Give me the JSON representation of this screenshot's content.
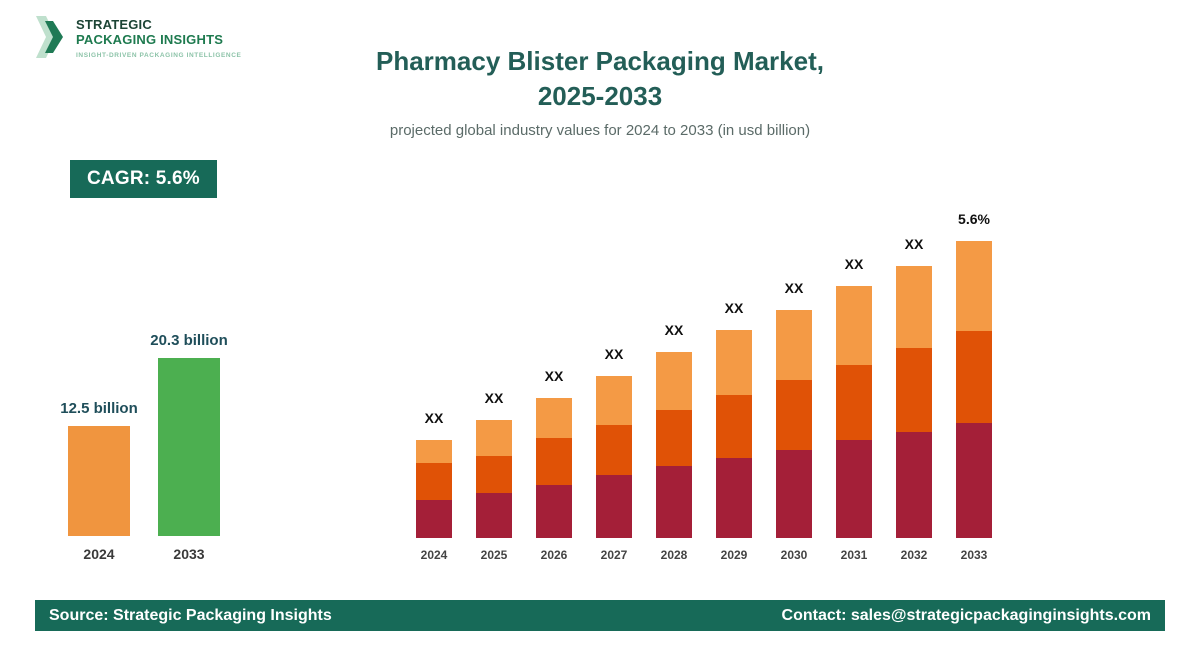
{
  "logo": {
    "line1": "STRATEGIC",
    "line2": "PACKAGING INSIGHTS",
    "tagline": "INSIGHT-DRIVEN PACKAGING INTELLIGENCE"
  },
  "header": {
    "title_line1": "Pharmacy Blister Packaging Market,",
    "title_line2": "2025-2033",
    "subtitle": "projected global industry values for 2024 to 2033 (in usd billion)"
  },
  "cagr_badge": "CAGR: 5.6%",
  "footer": {
    "source": "Source: Strategic Packaging Insights",
    "contact": "Contact: sales@strategicpackaginginsights.com"
  },
  "colors": {
    "brand_dark_green": "#176a58",
    "title_teal": "#235e57",
    "bar_orange": "#f0953f",
    "bar_green": "#4caf50",
    "stack_bottom_maroon": "#a41f38",
    "stack_middle_orange": "#e05206",
    "stack_top_light_orange": "#f49a45"
  },
  "chart_data": [
    {
      "id": "summary-bar",
      "type": "bar",
      "title": "",
      "categories": [
        "2024",
        "2033"
      ],
      "values": [
        12.5,
        20.3
      ],
      "value_labels": [
        "12.5 billion",
        "20.3 billion"
      ],
      "bar_colors": [
        "#f0953f",
        "#4caf50"
      ],
      "ylabel": "USD billion",
      "ylim": [
        0,
        22
      ],
      "grid": false,
      "legend": "none"
    },
    {
      "id": "stacked-forecast",
      "type": "bar",
      "stacked": true,
      "title": "",
      "categories": [
        "2024",
        "2025",
        "2026",
        "2027",
        "2028",
        "2029",
        "2030",
        "2031",
        "2032",
        "2033"
      ],
      "series": [
        {
          "name": "segment-bottom",
          "color": "#a41f38",
          "values": [
            38,
            45,
            53,
            63,
            72,
            80,
            88,
            98,
            106,
            115
          ]
        },
        {
          "name": "segment-middle",
          "color": "#e05206",
          "values": [
            37,
            37,
            47,
            50,
            56,
            63,
            70,
            75,
            84,
            92
          ]
        },
        {
          "name": "segment-top",
          "color": "#f49a45",
          "values": [
            23,
            36,
            40,
            49,
            58,
            65,
            70,
            79,
            82,
            90
          ]
        }
      ],
      "values_hidden_as": "XX",
      "bar_labels": [
        "XX",
        "XX",
        "XX",
        "XX",
        "XX",
        "XX",
        "XX",
        "XX",
        "XX",
        "5.6%"
      ],
      "units": "relative height units (actual values masked in source)",
      "grid": false,
      "legend": "none"
    }
  ]
}
